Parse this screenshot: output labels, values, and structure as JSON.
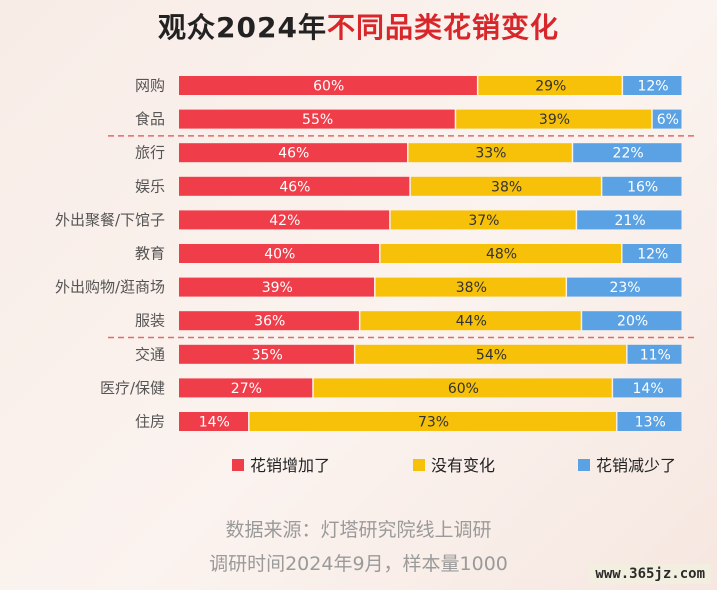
{
  "title_prefix": "观众2024年",
  "title_highlight": "不同品类花销变化",
  "source_line1": "数据来源：灯塔研究院线上调研",
  "source_line2": "调研时间2024年9月，样本量1000",
  "watermark": "www.365jz.com",
  "colors": {
    "increase": "#ef3d4a",
    "unchanged": "#f7c10a",
    "decrease": "#5aa2e4",
    "divider": "#e26a6a"
  },
  "chart_data": {
    "type": "bar",
    "orientation": "horizontal-stacked-100",
    "categories": [
      "网购",
      "食品",
      "旅行",
      "娱乐",
      "外出聚餐/下馆子",
      "教育",
      "外出购物/逛商场",
      "服装",
      "交通",
      "医疗/保健",
      "住房"
    ],
    "series": [
      {
        "name": "花销增加了",
        "values": [
          60,
          55,
          46,
          46,
          42,
          40,
          39,
          36,
          35,
          27,
          14
        ]
      },
      {
        "name": "没有变化",
        "values": [
          29,
          39,
          33,
          38,
          37,
          48,
          38,
          44,
          54,
          60,
          73
        ]
      },
      {
        "name": "花销减少了",
        "values": [
          12,
          6,
          22,
          16,
          21,
          12,
          23,
          20,
          11,
          14,
          13
        ]
      }
    ],
    "value_suffix": "%",
    "group_dividers_after": [
      1,
      7
    ],
    "legend_position": "bottom"
  }
}
